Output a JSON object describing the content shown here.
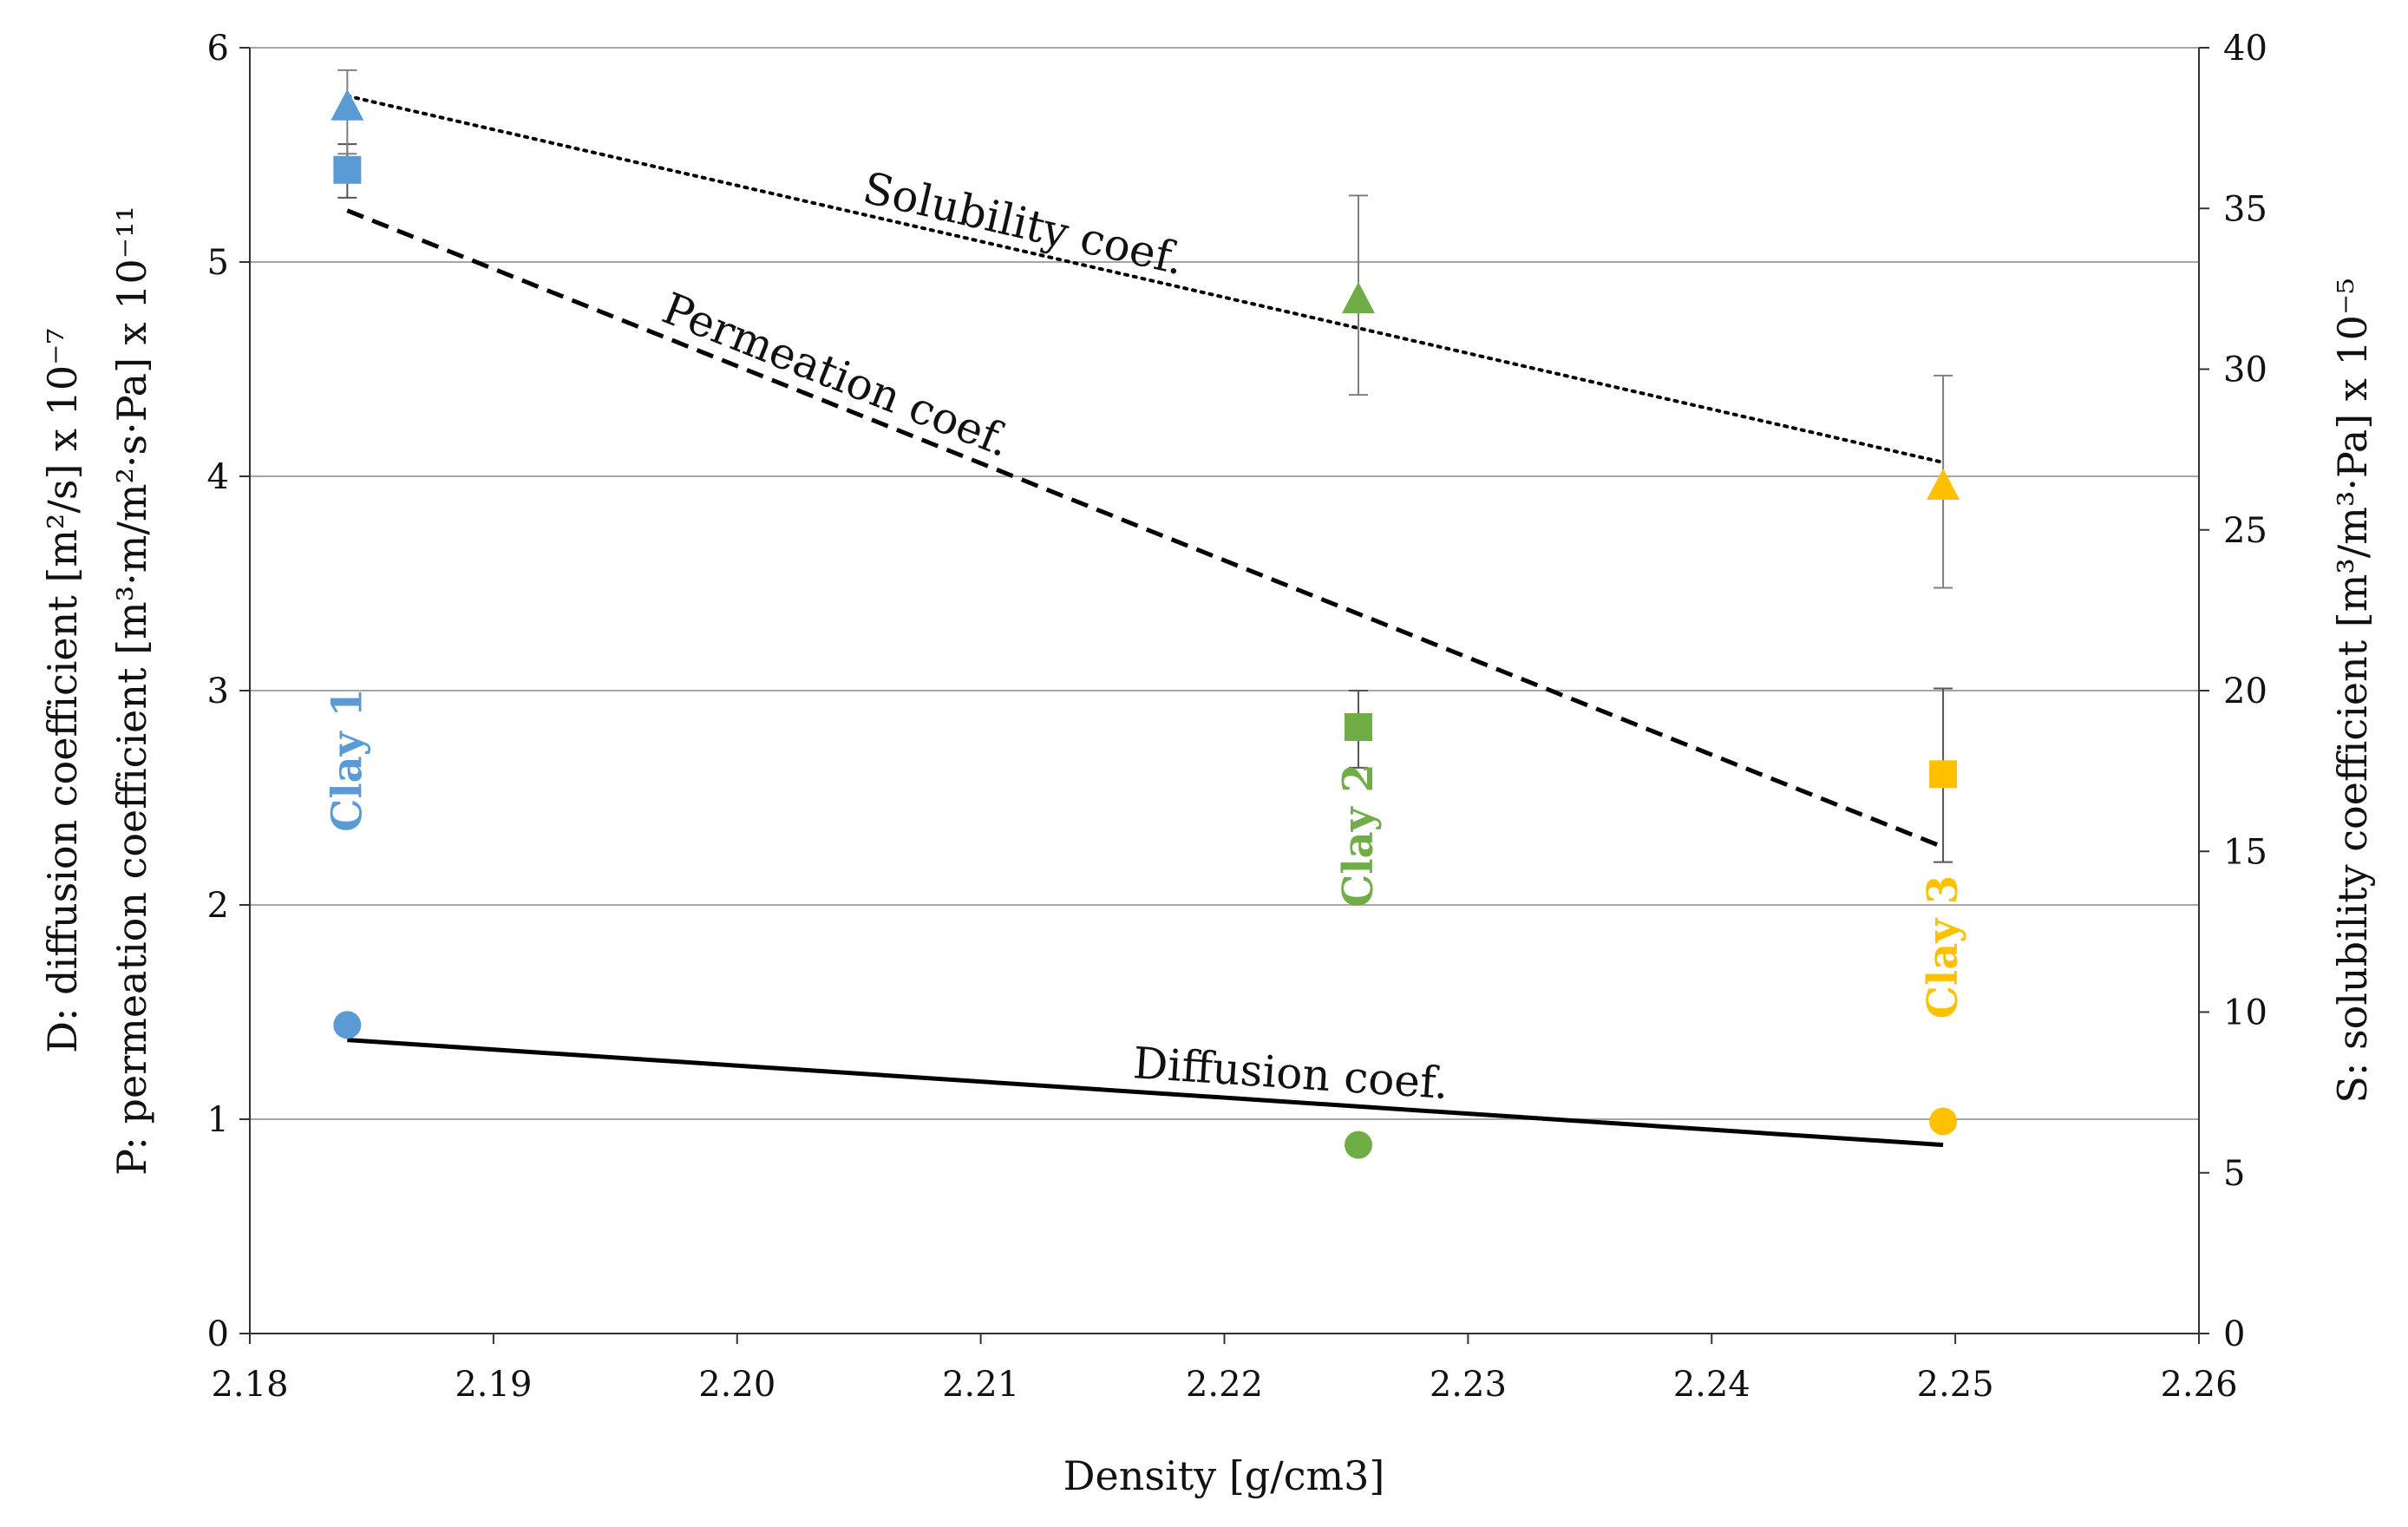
{
  "chart_data": {
    "type": "scatter",
    "x_axis": {
      "title": "Density [g/cm3]",
      "range": [
        2.18,
        2.26
      ],
      "ticks": [
        "2.18",
        "2.19",
        "2.20",
        "2.21",
        "2.22",
        "2.23",
        "2.24",
        "2.25",
        "2.26"
      ]
    },
    "y_left": {
      "title_line1": "D: diffusion coefficient [m²/s] x 10⁻⁷",
      "title_line2": "P: permeation coefficient [m³·m/m²·s·Pa] x 10⁻¹¹",
      "range": [
        0,
        6
      ],
      "ticks": [
        "0",
        "1",
        "2",
        "3",
        "4",
        "5",
        "6"
      ],
      "grid": true
    },
    "y_right": {
      "title": "S: solubility coefficient [m³/m³·Pa] x 10⁻⁵",
      "range": [
        0,
        40
      ],
      "ticks": [
        "0",
        "5",
        "10",
        "15",
        "20",
        "25",
        "30",
        "35",
        "40"
      ]
    },
    "clays": [
      {
        "name": "Clay 1",
        "color": "#5B9BD5",
        "density": 2.184,
        "diffusion": 1.44,
        "permeation": 5.43,
        "permeation_err": [
          5.3,
          5.55
        ],
        "solubility": 38.2,
        "solubility_err": [
          36.7,
          39.3
        ]
      },
      {
        "name": "Clay 2",
        "color": "#70AD47",
        "density": 2.2255,
        "diffusion": 0.88,
        "permeation": 2.83,
        "permeation_err": [
          2.64,
          3.0
        ],
        "solubility": 32.2,
        "solubility_err": [
          29.2,
          35.4
        ]
      },
      {
        "name": "Clay 3",
        "color": "#FFC000",
        "density": 2.2495,
        "diffusion": 0.99,
        "permeation": 2.61,
        "permeation_err": [
          2.2,
          3.01
        ],
        "solubility": 26.4,
        "solubility_err": [
          23.2,
          29.8
        ]
      }
    ],
    "trendlines": [
      {
        "name": "Solubility coef.",
        "axis": "right",
        "style": "dotted",
        "x": [
          2.184,
          2.2495
        ],
        "y": [
          38.5,
          27.1
        ]
      },
      {
        "name": "Permeation coef.",
        "axis": "left",
        "style": "dashed",
        "x": [
          2.184,
          2.2495
        ],
        "y": [
          5.24,
          2.27
        ]
      },
      {
        "name": "Diffusion coef.",
        "axis": "left",
        "style": "solid",
        "x": [
          2.184,
          2.2495
        ],
        "y": [
          1.37,
          0.88
        ]
      }
    ]
  }
}
